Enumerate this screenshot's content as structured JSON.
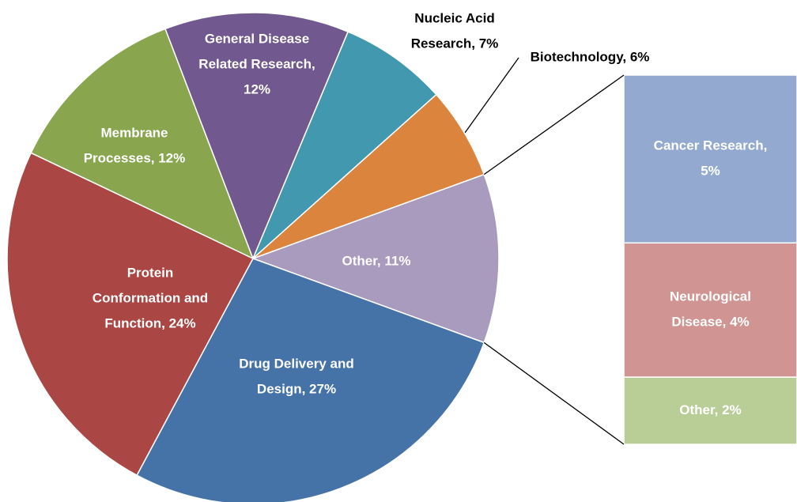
{
  "chart_data": {
    "type": "pie",
    "values": [
      11,
      27,
      24,
      12,
      12,
      7,
      6
    ],
    "labels": [
      [
        "Other, 11%"
      ],
      [
        "Drug Delivery and",
        "Design, 27%"
      ],
      [
        "Protein",
        "Conformation and",
        "Function, 24%"
      ],
      [
        "Membrane",
        "Processes, 12%"
      ],
      [
        "General Disease",
        "Related Research,",
        "12%"
      ],
      [
        "Nucleic Acid",
        "Research, 7%"
      ],
      [
        "Biotechnology, 6%"
      ]
    ],
    "colors": [
      "#a99bbd",
      "#4572a7",
      "#aa4643",
      "#89a54e",
      "#71588f",
      "#4198af",
      "#db843d"
    ],
    "bar": {
      "values": [
        5,
        4,
        2
      ],
      "labels": [
        [
          "Cancer Research,",
          "5%"
        ],
        [
          "Neurological",
          "Disease, 4%"
        ],
        [
          "Other, 2%"
        ]
      ],
      "colors": [
        "#93a9cf",
        "#d09493",
        "#b9cd96"
      ]
    }
  }
}
